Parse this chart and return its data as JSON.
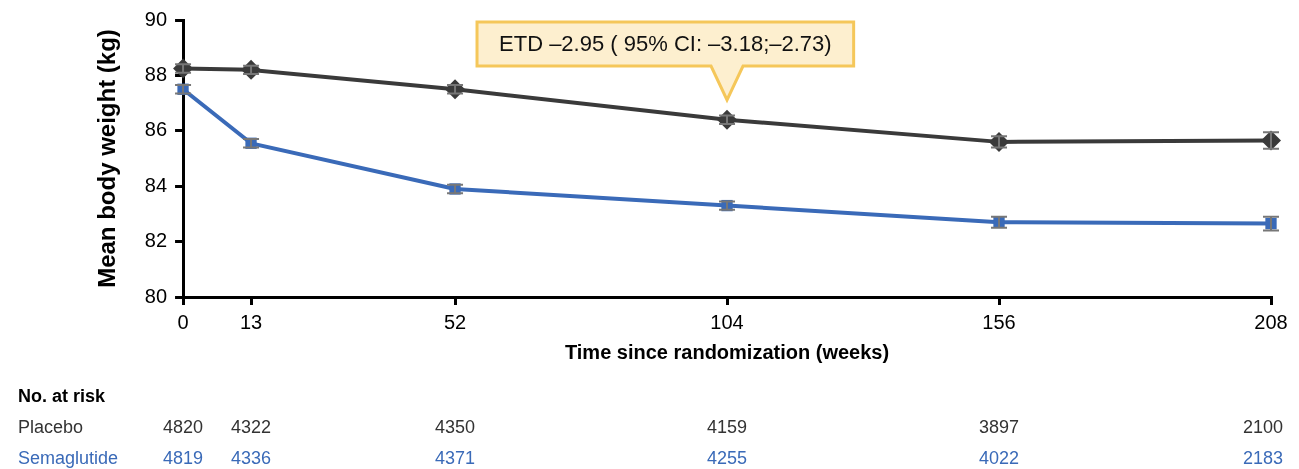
{
  "chart_data": {
    "type": "line",
    "xlabel": "Time since randomization (weeks)",
    "ylabel": "Mean body weight (kg)",
    "x": [
      0,
      13,
      52,
      104,
      156,
      208
    ],
    "series": [
      {
        "name": "Placebo",
        "color": "#3a3a3a",
        "marker": "diamond",
        "values": [
          88.25,
          88.2,
          87.5,
          86.4,
          85.6,
          85.65
        ],
        "errors": [
          0.15,
          0.15,
          0.15,
          0.15,
          0.2,
          0.3
        ]
      },
      {
        "name": "Semaglutide",
        "color": "#3a6ab8",
        "marker": "square",
        "values": [
          87.5,
          85.55,
          83.9,
          83.3,
          82.7,
          82.65
        ],
        "errors": [
          0.15,
          0.15,
          0.15,
          0.15,
          0.2,
          0.25
        ]
      }
    ],
    "xlim": [
      0,
      208
    ],
    "xticks": [
      0,
      13,
      52,
      104,
      156,
      208
    ],
    "ylim": [
      80,
      90
    ],
    "yticks": [
      80,
      82,
      84,
      86,
      88,
      90
    ],
    "grid": false,
    "legend": false,
    "annotations": [
      "ETD –2.95 ( 95% CI: –3.18;–2.73)",
      "No. at risk",
      "4820",
      "4322",
      "4350",
      "4159",
      "3897",
      "2100",
      "4819",
      "4336",
      "4371",
      "4255",
      "4022",
      "2183"
    ]
  }
}
